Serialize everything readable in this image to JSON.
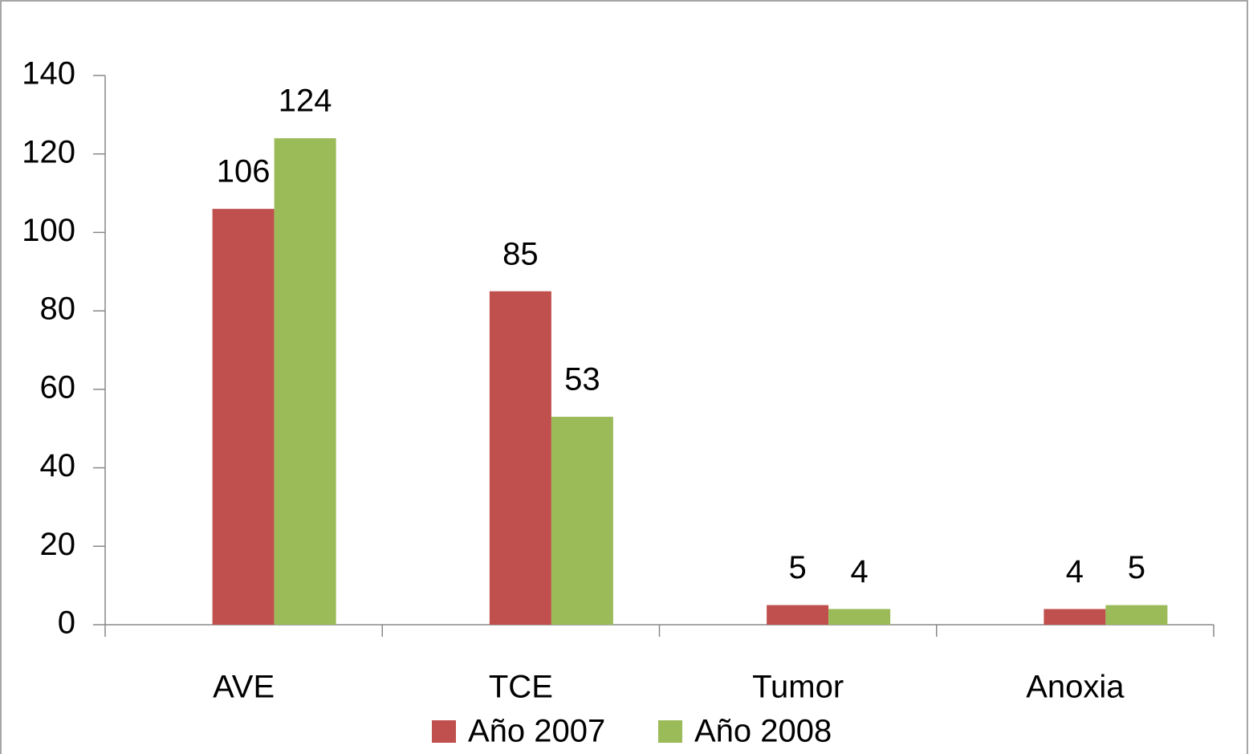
{
  "chart_data": {
    "type": "bar",
    "categories": [
      "AVE",
      "TCE",
      "Tumor",
      "Anoxia"
    ],
    "series": [
      {
        "name": "Año 2007",
        "color": "#c0504d",
        "values": [
          106,
          85,
          5,
          4
        ]
      },
      {
        "name": "Año 2008",
        "color": "#9bbb59",
        "values": [
          124,
          53,
          4,
          5
        ]
      }
    ],
    "ylim": [
      0,
      140
    ],
    "yticks": [
      0,
      20,
      40,
      60,
      80,
      100,
      120,
      140
    ],
    "grid": false,
    "legend": "bottom"
  }
}
